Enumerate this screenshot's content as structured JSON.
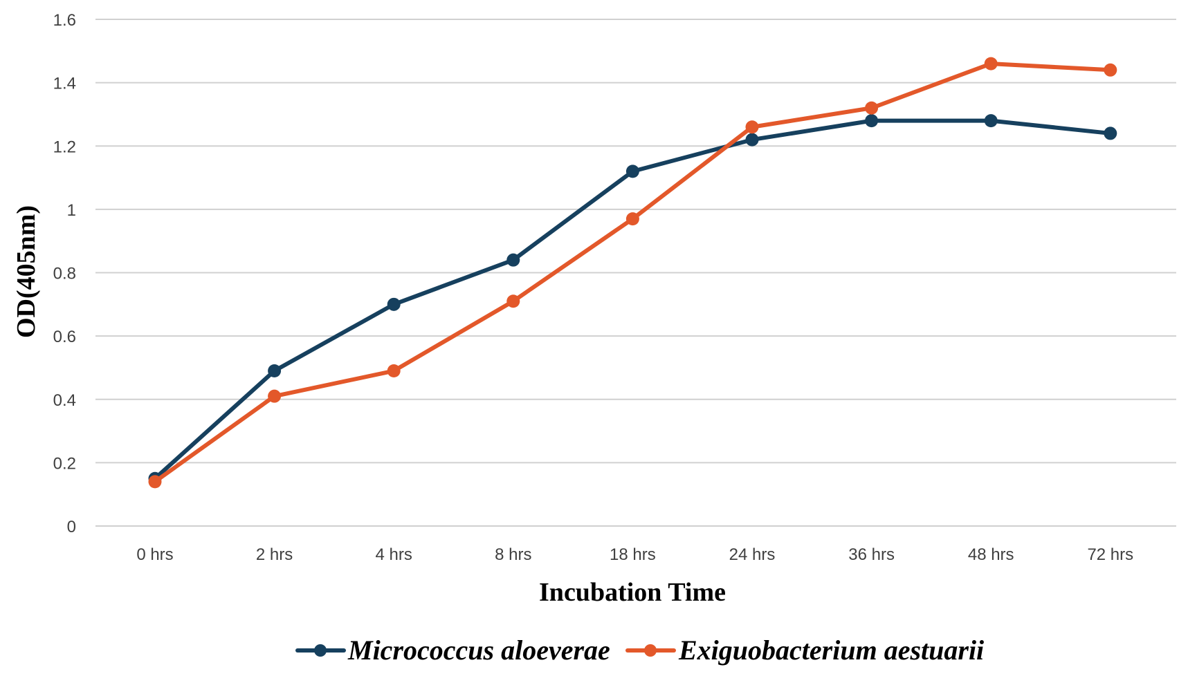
{
  "chart_data": {
    "type": "line",
    "categories": [
      "0 hrs",
      "2 hrs",
      "4 hrs",
      "8 hrs",
      "18 hrs",
      "24 hrs",
      "36 hrs",
      "48 hrs",
      "72 hrs"
    ],
    "series": [
      {
        "name": "Micrococcus aloeverae",
        "color": "#16405e",
        "values": [
          0.15,
          0.49,
          0.7,
          0.84,
          1.12,
          1.22,
          1.28,
          1.28,
          1.24
        ]
      },
      {
        "name": "Exiguobacterium aestuarii",
        "color": "#e3582a",
        "values": [
          0.14,
          0.41,
          0.49,
          0.71,
          0.97,
          1.26,
          1.32,
          1.46,
          1.44
        ]
      }
    ],
    "xlabel": "Incubation Time",
    "ylabel": "OD(405nm)",
    "ylim": [
      0,
      1.6
    ],
    "yticks": [
      "0",
      "0.2",
      "0.4",
      "0.6",
      "0.8",
      "1",
      "1.2",
      "1.4",
      "1.6"
    ],
    "grid": true,
    "legend_position": "bottom"
  }
}
